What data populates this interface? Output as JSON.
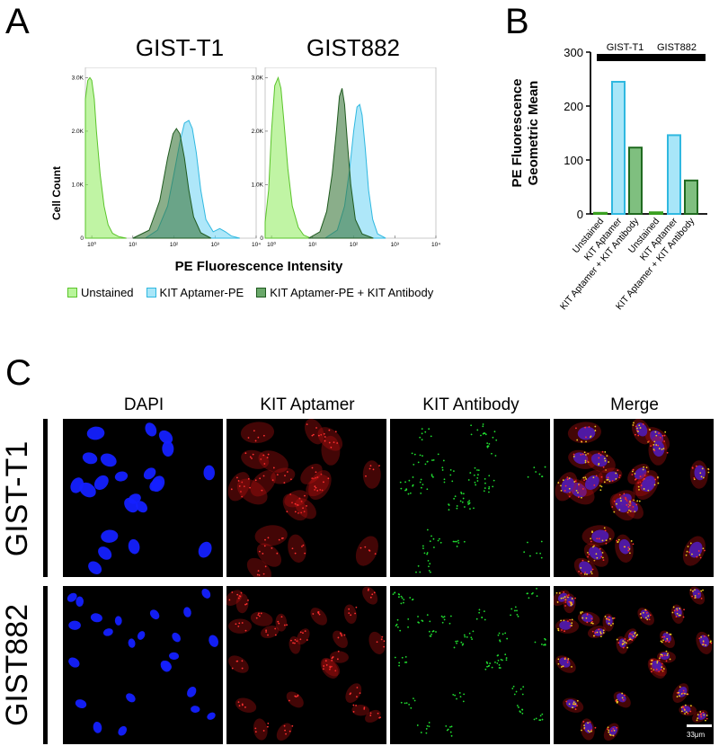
{
  "panels": {
    "a": "A",
    "b": "B",
    "c": "C"
  },
  "colors": {
    "unstained": "#7fe34a",
    "aptamer": "#4fd0f2",
    "aptamer_antibody": "#2f7a2f",
    "dapi": "#1020ff",
    "kit_aptamer": "#e01010",
    "kit_antibody": "#10d020",
    "merge_overlap": "#f0d020"
  },
  "chart_data": [
    {
      "type": "area",
      "title": "GIST-T1",
      "xlabel": "PE Fluorescence Intensity",
      "ylabel": "Cell Count",
      "x_scale": "log",
      "xlim": [
        0.7,
        10000
      ],
      "ylim": [
        0,
        3000
      ],
      "x_tick_labels": [
        "10⁰",
        "10¹",
        "10²",
        "10³",
        "10⁴"
      ],
      "y_tick_labels": [
        "0",
        "1.0K",
        "2.0K",
        "3.0K"
      ],
      "series": [
        {
          "name": "Unstained",
          "x": [
            0.7,
            0.8,
            0.9,
            1.0,
            1.15,
            1.3,
            1.6,
            2.0,
            2.5,
            3.2,
            4.5,
            7
          ],
          "y": [
            2600,
            2950,
            3000,
            2950,
            2600,
            2000,
            1200,
            600,
            250,
            90,
            30,
            0
          ]
        },
        {
          "name": "KIT Aptamer-PE",
          "x": [
            20,
            40,
            70,
            100,
            140,
            180,
            230,
            280,
            350,
            450,
            600,
            900,
            1300,
            1800,
            2500,
            4000
          ],
          "y": [
            0,
            150,
            600,
            1200,
            1800,
            2150,
            2200,
            2050,
            1600,
            900,
            350,
            120,
            180,
            120,
            40,
            0
          ]
        },
        {
          "name": "KIT Aptamer-PE + KIT Antibody",
          "x": [
            10,
            25,
            45,
            70,
            95,
            115,
            140,
            180,
            230,
            300,
            450,
            800
          ],
          "y": [
            0,
            150,
            700,
            1500,
            1950,
            2050,
            1950,
            1500,
            900,
            400,
            100,
            0
          ]
        }
      ]
    },
    {
      "type": "area",
      "title": "GIST882",
      "xlabel": "PE Fluorescence Intensity",
      "ylabel": "Cell Count",
      "x_scale": "log",
      "xlim": [
        0.7,
        10000
      ],
      "ylim": [
        0,
        3000
      ],
      "x_tick_labels": [
        "10⁰",
        "10¹",
        "10²",
        "10³",
        "10⁴"
      ],
      "y_tick_labels": [
        "0",
        "1.0K",
        "2.0K",
        "3.0K"
      ],
      "series": [
        {
          "name": "Unstained",
          "x": [
            0.7,
            0.85,
            1.0,
            1.2,
            1.45,
            1.7,
            2.0,
            2.5,
            3.2,
            4.5,
            6,
            9
          ],
          "y": [
            300,
            900,
            2000,
            2850,
            3000,
            2800,
            2200,
            1300,
            600,
            200,
            60,
            0
          ]
        },
        {
          "name": "KIT Aptamer-PE",
          "x": [
            20,
            40,
            60,
            80,
            100,
            120,
            140,
            160,
            190,
            230,
            290,
            380,
            600
          ],
          "y": [
            0,
            150,
            600,
            1300,
            2000,
            2450,
            2500,
            2300,
            1700,
            900,
            350,
            80,
            0
          ]
        },
        {
          "name": "KIT Aptamer-PE + KIT Antibody",
          "x": [
            8,
            15,
            22,
            30,
            38,
            45,
            52,
            60,
            70,
            85,
            110,
            160,
            300
          ],
          "y": [
            0,
            120,
            500,
            1200,
            2000,
            2650,
            2800,
            2500,
            1800,
            1000,
            350,
            80,
            0
          ]
        }
      ]
    },
    {
      "type": "bar",
      "ylabel": "PE Fluorescence Geometric Mean",
      "ylim": [
        0,
        300
      ],
      "y_tick_labels": [
        "0",
        "100",
        "200",
        "300"
      ],
      "group_labels": [
        "GIST-T1",
        "GIST882"
      ],
      "categories": [
        "Unstained",
        "KIT Aptamer",
        "KIT Aptamer + KIT Antibody",
        "Unstained",
        "KIT Aptamer",
        "KIT Aptamer + KIT Antibody"
      ],
      "values": [
        2,
        245,
        123,
        3,
        146,
        62
      ]
    }
  ],
  "legend": [
    "Unstained",
    "KIT Aptamer-PE",
    "KIT Aptamer-PE + KIT Antibody"
  ],
  "microscopy": {
    "columns": [
      "DAPI",
      "KIT Aptamer",
      "KIT Antibody",
      "Merge"
    ],
    "rows": [
      "GIST-T1",
      "GIST882"
    ],
    "scale_bar": "33μm"
  }
}
